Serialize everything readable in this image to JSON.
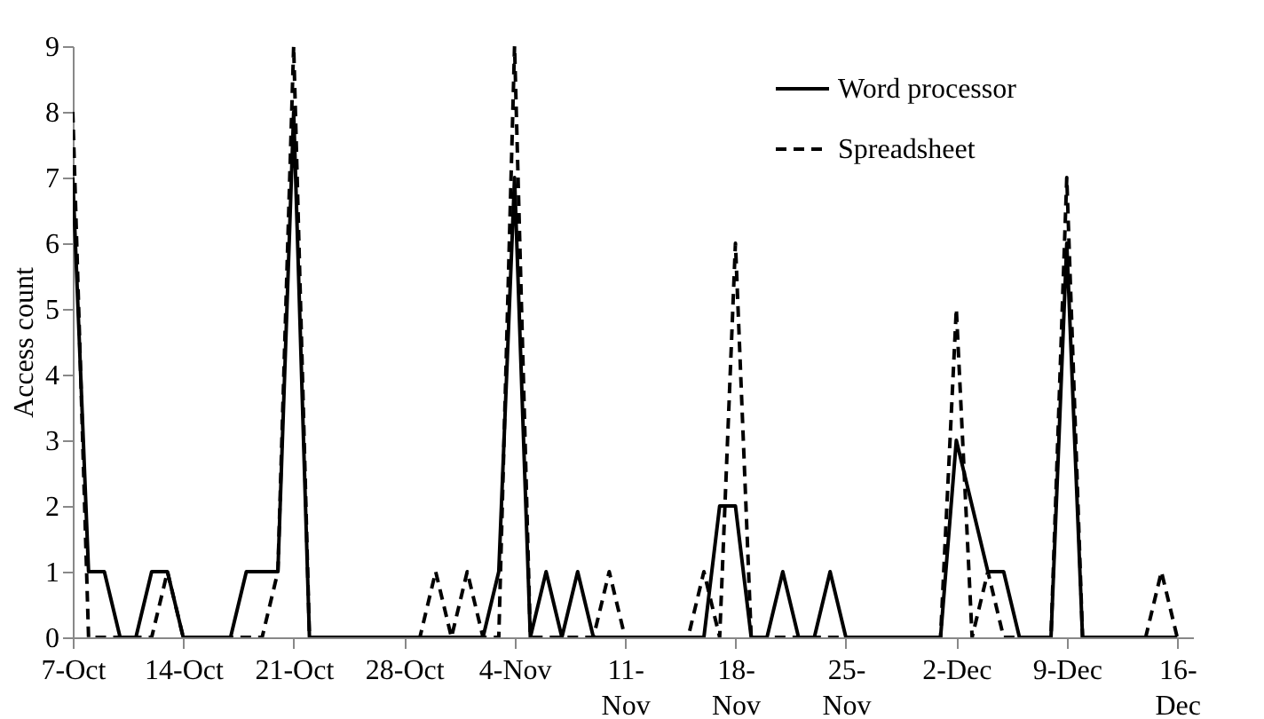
{
  "chart_data": {
    "type": "line",
    "ylabel": "Access count",
    "x": [
      "--10-07",
      "--10-08",
      "--10-09",
      "--10-10",
      "--10-11",
      "--10-12",
      "--10-13",
      "--10-14",
      "--10-15",
      "--10-16",
      "--10-17",
      "--10-18",
      "--10-19",
      "--10-20",
      "--10-21",
      "--10-22",
      "--10-23",
      "--10-24",
      "--10-25",
      "--10-26",
      "--10-27",
      "--10-28",
      "--10-29",
      "--10-30",
      "--10-31",
      "--11-01",
      "--11-02",
      "--11-03",
      "--11-04",
      "--11-05",
      "--11-06",
      "--11-07",
      "--11-08",
      "--11-09",
      "--11-10",
      "--11-11",
      "--11-12",
      "--11-13",
      "--11-14",
      "--11-15",
      "--11-16",
      "--11-17",
      "--11-18",
      "--11-19",
      "--11-20",
      "--11-21",
      "--11-22",
      "--11-23",
      "--11-24",
      "--11-25",
      "--11-26",
      "--11-27",
      "--11-28",
      "--11-29",
      "--11-30",
      "--12-01",
      "--12-02",
      "--12-03",
      "--12-04",
      "--12-05",
      "--12-06",
      "--12-07",
      "--12-08",
      "--12-09",
      "--12-10",
      "--12-11",
      "--12-12",
      "--12-13",
      "--12-14",
      "--12-15",
      "--12-16"
    ],
    "series": [
      {
        "name": "Word processor",
        "color": "#000000",
        "line_style": "solid",
        "values": [
          7,
          1,
          1,
          0,
          0,
          1,
          1,
          0,
          0,
          0,
          0,
          1,
          1,
          1,
          8,
          0,
          0,
          0,
          0,
          0,
          0,
          0,
          0,
          0,
          0,
          0,
          0,
          1,
          7,
          0,
          1,
          0,
          1,
          0,
          0,
          0,
          0,
          0,
          0,
          0,
          0,
          2,
          2,
          0,
          0,
          1,
          0,
          0,
          1,
          0,
          0,
          0,
          0,
          0,
          0,
          0,
          3,
          2,
          1,
          1,
          0,
          0,
          0,
          6,
          0,
          0,
          0,
          0,
          0,
          0,
          0
        ]
      },
      {
        "name": "Spreadsheet",
        "color": "#000000",
        "line_style": "dashed",
        "values": [
          8,
          0,
          0,
          0,
          0,
          0,
          1,
          0,
          0,
          0,
          0,
          0,
          0,
          1,
          9,
          0,
          0,
          0,
          0,
          0,
          0,
          0,
          0,
          1,
          0,
          1,
          0,
          0,
          9,
          0,
          0,
          0,
          0,
          0,
          1,
          0,
          0,
          0,
          0,
          0,
          1,
          0,
          6,
          0,
          0,
          0,
          0,
          0,
          0,
          0,
          0,
          0,
          0,
          0,
          0,
          0,
          5,
          0,
          1,
          0,
          0,
          0,
          0,
          7,
          0,
          0,
          0,
          0,
          0,
          1,
          0
        ]
      }
    ],
    "xlim": [
      "--10-07",
      "--12-17"
    ],
    "xticks": [
      {
        "value": "--10-07",
        "label": "7-Oct"
      },
      {
        "value": "--10-14",
        "label": "14-Oct"
      },
      {
        "value": "--10-21",
        "label": "21-Oct"
      },
      {
        "value": "--10-28",
        "label": "28-Oct"
      },
      {
        "value": "--11-04",
        "label": "4-Nov"
      },
      {
        "value": "--11-11",
        "label": "11-Nov"
      },
      {
        "value": "--11-18",
        "label": "18-Nov"
      },
      {
        "value": "--11-25",
        "label": "25-Nov"
      },
      {
        "value": "--12-02",
        "label": "2-Dec"
      },
      {
        "value": "--12-09",
        "label": "9-Dec"
      },
      {
        "value": "--12-16",
        "label": "16-Dec"
      }
    ],
    "ylim": [
      0,
      9
    ],
    "yticks": [
      0,
      1,
      2,
      3,
      4,
      5,
      6,
      7,
      8,
      9
    ],
    "grid": false,
    "legend": "top right",
    "marker": "none"
  }
}
